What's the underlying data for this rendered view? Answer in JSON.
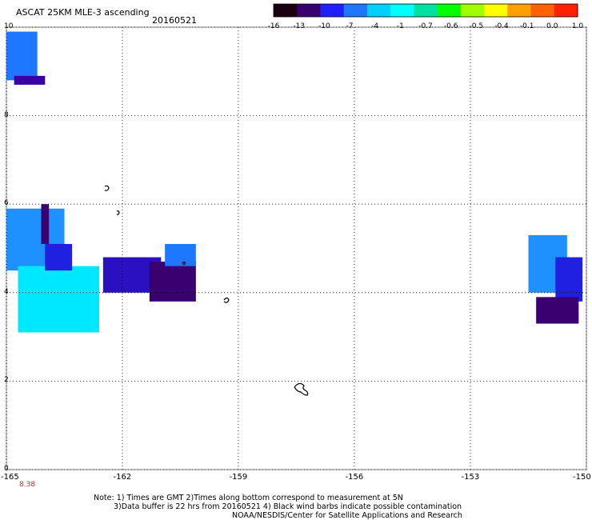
{
  "title": "ASCAT 25KM MLE-3 ascending",
  "date": "20160521",
  "colorbar": {
    "labels": [
      "-16",
      "-13",
      "-10",
      "-7",
      "-4",
      "-1",
      "-0.7",
      "-0.6",
      "-0.5",
      "-0.4",
      "-0.1",
      "0.0",
      "1.0"
    ],
    "colors": [
      "#1a0010",
      "#3a0070",
      "#2020ff",
      "#1e78ff",
      "#00d0ff",
      "#00ffff",
      "#00e0a0",
      "#00ff00",
      "#a0ff00",
      "#ffff00",
      "#ffa000",
      "#ff6000",
      "#ff2000"
    ]
  },
  "y_axis": {
    "labels": [
      "10",
      "8",
      "6",
      "4",
      "2",
      "0"
    ],
    "values": [
      10,
      8,
      6,
      4,
      2,
      0
    ]
  },
  "x_axis": {
    "labels": [
      "-165",
      "-162",
      "-159",
      "-156",
      "-153",
      "-150"
    ],
    "values": [
      -165,
      -162,
      -159,
      -156,
      -153,
      -150
    ]
  },
  "bottom_value": "8.38",
  "notes": [
    "Note: 1) Times are GMT 2)Times along bottom correspond to measurement at 5N",
    "3)Data buffer is 22 hrs from 20160521 4) Black wind barbs indicate possible contamination",
    "NOAA/NESDIS/Center for Satellite Applications and Research"
  ],
  "data_regions": [
    {
      "name": "topleft-patch",
      "lon0": -165,
      "lon1": -164.2,
      "lat0": 8.8,
      "lat1": 9.9,
      "color": "#1e78ff"
    },
    {
      "name": "topleft-patch-dark",
      "lon0": -164.8,
      "lon1": -164.0,
      "lat0": 8.7,
      "lat1": 8.9,
      "color": "#3a00a0"
    },
    {
      "name": "left-blue",
      "lon0": -165,
      "lon1": -163.5,
      "lat0": 4.5,
      "lat1": 5.9,
      "color": "#1e90ff"
    },
    {
      "name": "left-cyan",
      "lon0": -164.7,
      "lon1": -162.6,
      "lat0": 3.1,
      "lat1": 4.6,
      "color": "#00e8ff"
    },
    {
      "name": "left-darkblue",
      "lon0": -164.0,
      "lon1": -163.3,
      "lat0": 4.5,
      "lat1": 5.1,
      "color": "#2020e0"
    },
    {
      "name": "left-edge-purple",
      "lon0": -164.1,
      "lon1": -163.9,
      "lat0": 5.1,
      "lat1": 6.0,
      "color": "#3a0070"
    },
    {
      "name": "center-blue-purple",
      "lon0": -162.5,
      "lon1": -161.0,
      "lat0": 4.0,
      "lat1": 4.8,
      "color": "#2a10c0"
    },
    {
      "name": "center-purple",
      "lon0": -161.3,
      "lon1": -160.1,
      "lat0": 3.8,
      "lat1": 4.7,
      "color": "#3a0070"
    },
    {
      "name": "center-top-blue",
      "lon0": -160.9,
      "lon1": -160.1,
      "lat0": 4.6,
      "lat1": 5.1,
      "color": "#1e78ff"
    },
    {
      "name": "right-blue",
      "lon0": -151.5,
      "lon1": -150.5,
      "lat0": 4.0,
      "lat1": 5.3,
      "color": "#1e90ff"
    },
    {
      "name": "right-darkblue",
      "lon0": -150.8,
      "lon1": -150.1,
      "lat0": 3.8,
      "lat1": 4.8,
      "color": "#2020e0"
    },
    {
      "name": "right-purple",
      "lon0": -151.3,
      "lon1": -150.2,
      "lat0": 3.3,
      "lat1": 3.9,
      "color": "#3a0070"
    }
  ]
}
